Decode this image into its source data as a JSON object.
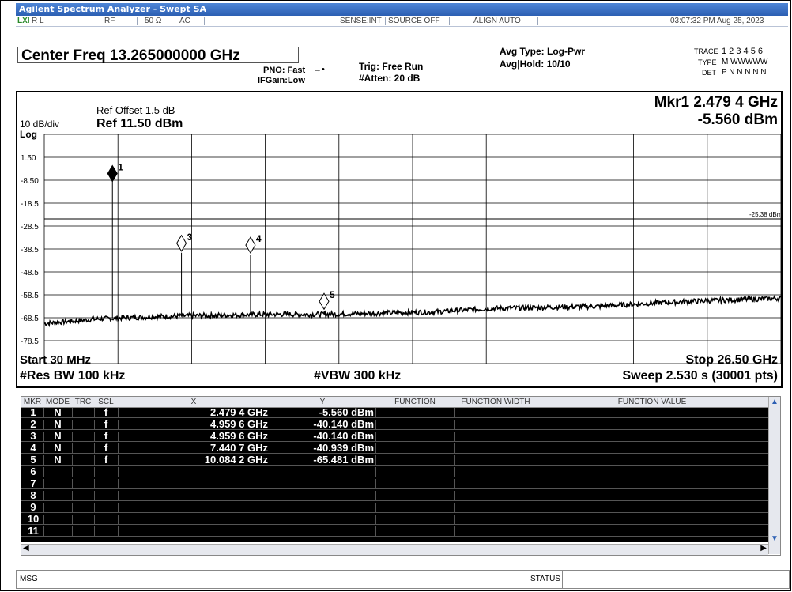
{
  "window": {
    "title": "Agilent Spectrum Analyzer - Swept SA"
  },
  "status": {
    "rl": "R L",
    "rf": "RF",
    "imp": "50 Ω",
    "coupling": "AC",
    "sense": "SENSE:INT",
    "source": "SOURCE OFF",
    "align": "ALIGN AUTO",
    "timestamp": "03:07:32 PM Aug 25, 2023"
  },
  "header": {
    "center_freq": "Center Freq 13.265000000 GHz",
    "pno": "PNO: Fast",
    "ifgain": "IFGain:Low",
    "trig": "Trig: Free Run",
    "atten": "#Atten: 20 dB",
    "avg_type": "Avg Type: Log-Pwr",
    "avg_hold": "Avg|Hold: 10/10",
    "trace_label": "TRACE",
    "trace_nums": "1 2 3 4 5 6",
    "type_label": "TYPE",
    "type_val": "M WWWWW",
    "det_label": "DET",
    "det_val": "P N N N N N"
  },
  "plot": {
    "ref_offset": "Ref Offset 1.5 dB",
    "ref": "Ref 11.50 dBm",
    "scale": "10 dB/div",
    "log": "Log",
    "mkr_readout": "Mkr1 2.479 4 GHz",
    "mkr_value": "-5.560 dBm",
    "line_label": "-25.38 dBm",
    "start": "Start 30 MHz",
    "stop": "Stop 26.50 GHz",
    "rbw": "#Res BW 100 kHz",
    "vbw": "#VBW 300 kHz",
    "sweep": "Sweep  2.530 s (30001 pts)"
  },
  "chart_data": {
    "type": "line",
    "title": "",
    "xlabel": "",
    "ylabel": "",
    "ylim": [
      -88.5,
      11.5
    ],
    "xlim": [
      0.03,
      26.5
    ],
    "y_ticks": [
      "1.50",
      "-8.50",
      "-18.5",
      "-28.5",
      "-38.5",
      "-48.5",
      "-58.5",
      "-68.5",
      "-78.5"
    ],
    "series": [
      {
        "x": [
          0.03,
          2,
          4,
          6,
          8,
          10,
          12,
          14,
          16,
          18,
          20,
          22,
          24,
          26.5
        ],
        "y": [
          -71,
          -69,
          -68,
          -67.5,
          -67,
          -67,
          -66.5,
          -66,
          -64.5,
          -64,
          -63.5,
          -62,
          -61,
          -60
        ]
      }
    ],
    "markers": [
      {
        "id": "1",
        "x": 2.4794,
        "y": -5.56
      },
      {
        "id": "3",
        "x": 4.9596,
        "y": -40.14
      },
      {
        "id": "4",
        "x": 7.4407,
        "y": -40.939
      },
      {
        "id": "5",
        "x": 10.0842,
        "y": -65.481
      }
    ],
    "display_line": -25.38
  },
  "table": {
    "headers": [
      "MKR",
      "MODE",
      "TRC",
      "SCL",
      "X",
      "Y",
      "FUNCTION",
      "FUNCTION WIDTH",
      "FUNCTION VALUE"
    ],
    "rows": [
      [
        "1",
        "N",
        "",
        "f",
        "2.479 4 GHz",
        "-5.560 dBm"
      ],
      [
        "2",
        "N",
        "",
        "f",
        "4.959 6 GHz",
        "-40.140 dBm"
      ],
      [
        "3",
        "N",
        "",
        "f",
        "4.959 6 GHz",
        "-40.140 dBm"
      ],
      [
        "4",
        "N",
        "",
        "f",
        "7.440 7 GHz",
        "-40.939 dBm"
      ],
      [
        "5",
        "N",
        "",
        "f",
        "10.084 2 GHz",
        "-65.481 dBm"
      ],
      [
        "6",
        "",
        "",
        "",
        "",
        ""
      ],
      [
        "7",
        "",
        "",
        "",
        "",
        ""
      ],
      [
        "8",
        "",
        "",
        "",
        "",
        ""
      ],
      [
        "9",
        "",
        "",
        "",
        "",
        ""
      ],
      [
        "10",
        "",
        "",
        "",
        "",
        ""
      ],
      [
        "11",
        "",
        "",
        "",
        "",
        ""
      ]
    ]
  },
  "bottom": {
    "msg": "MSG",
    "status": "STATUS"
  }
}
